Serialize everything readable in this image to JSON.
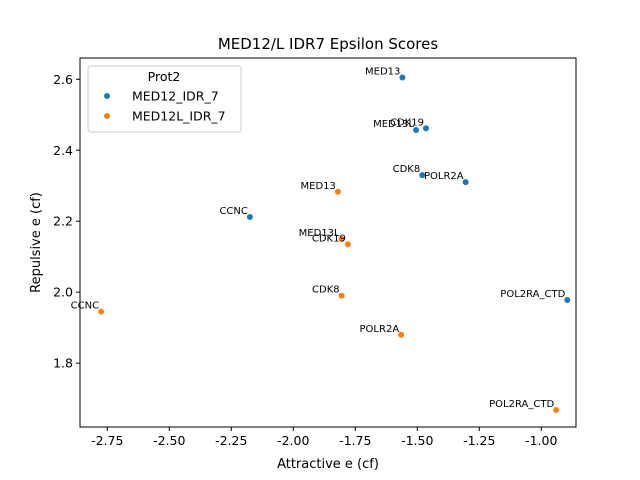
{
  "chart_data": {
    "type": "scatter",
    "title": "MED12/L IDR7 Epsilon Scores",
    "xlabel": "Attractive e (cf)",
    "ylabel": "Repulsive e (cf)",
    "xlim": [
      -2.86,
      -0.86
    ],
    "ylim": [
      1.62,
      2.66
    ],
    "xticks": [
      "-2.75",
      "-2.50",
      "-2.25",
      "-2.00",
      "-1.75",
      "-1.50",
      "-1.25",
      "-1.00"
    ],
    "yticks": [
      "1.8",
      "2.0",
      "2.2",
      "2.4",
      "2.6"
    ],
    "grid": false,
    "legend": {
      "title": "Prot2",
      "position": "upper-left"
    },
    "series": [
      {
        "name": "MED12_IDR_7",
        "color": "#1f77b4",
        "points": [
          {
            "label": "MED13",
            "x": -1.56,
            "y": 2.605
          },
          {
            "label": "CDK19",
            "x": -1.465,
            "y": 2.462
          },
          {
            "label": "MED13L",
            "x": -1.505,
            "y": 2.457
          },
          {
            "label": "CDK8",
            "x": -1.48,
            "y": 2.33
          },
          {
            "label": "POLR2A",
            "x": -1.305,
            "y": 2.31
          },
          {
            "label": "CCNC",
            "x": -2.175,
            "y": 2.212
          },
          {
            "label": "POL2RA_CTD",
            "x": -0.895,
            "y": 1.978
          }
        ]
      },
      {
        "name": "MED12L_IDR_7",
        "color": "#ff7f0e",
        "points": [
          {
            "label": "MED13",
            "x": -1.82,
            "y": 2.283
          },
          {
            "label": "MED13L",
            "x": -1.805,
            "y": 2.15
          },
          {
            "label": "CDK19",
            "x": -1.78,
            "y": 2.135
          },
          {
            "label": "CDK8",
            "x": -1.805,
            "y": 1.99
          },
          {
            "label": "CCNC",
            "x": -2.775,
            "y": 1.945
          },
          {
            "label": "POLR2A",
            "x": -1.565,
            "y": 1.88
          },
          {
            "label": "POL2RA_CTD",
            "x": -0.94,
            "y": 1.668
          }
        ]
      }
    ]
  }
}
